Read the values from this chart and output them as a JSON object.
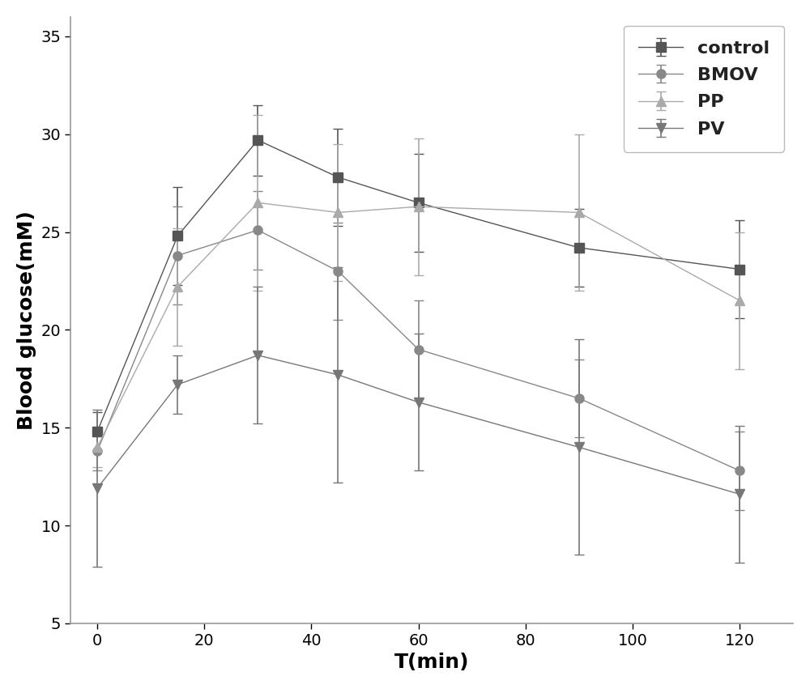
{
  "x": [
    0,
    15,
    30,
    45,
    60,
    90,
    120
  ],
  "series": {
    "control": {
      "y": [
        14.8,
        24.8,
        29.7,
        27.8,
        26.5,
        24.2,
        23.1
      ],
      "yerr": [
        1.0,
        2.5,
        1.8,
        2.5,
        2.5,
        2.0,
        2.5
      ],
      "color": "#555555",
      "marker": "s",
      "label": "control"
    },
    "BMOV": {
      "y": [
        13.8,
        23.8,
        25.1,
        23.0,
        19.0,
        16.5,
        12.8
      ],
      "yerr": [
        1.0,
        2.5,
        2.0,
        2.5,
        2.5,
        2.0,
        2.0
      ],
      "color": "#888888",
      "marker": "o",
      "label": "BMOV"
    },
    "PP": {
      "y": [
        14.0,
        22.2,
        26.5,
        26.0,
        26.3,
        26.0,
        21.5
      ],
      "yerr": [
        1.0,
        3.0,
        4.5,
        3.5,
        3.5,
        4.0,
        3.5
      ],
      "color": "#aaaaaa",
      "marker": "^",
      "label": "PP"
    },
    "PV": {
      "y": [
        11.9,
        17.2,
        18.7,
        17.7,
        16.3,
        14.0,
        11.6
      ],
      "yerr": [
        4.0,
        1.5,
        3.5,
        5.5,
        3.5,
        5.5,
        3.5
      ],
      "color": "#777777",
      "marker": "v",
      "label": "PV"
    }
  },
  "xlabel": "T(min)",
  "ylabel": "Blood glucose(mM)",
  "ylim": [
    5,
    36
  ],
  "xlim": [
    -5,
    130
  ],
  "yticks": [
    5,
    10,
    15,
    20,
    25,
    30,
    35
  ],
  "xticks": [
    0,
    20,
    40,
    60,
    80,
    100,
    120
  ],
  "legend_loc": "upper right",
  "line_color": "#aaaaaa",
  "line_width": 1.0,
  "marker_size": 8,
  "capsize": 4,
  "elinewidth": 1.2,
  "background_color": "#ffffff"
}
